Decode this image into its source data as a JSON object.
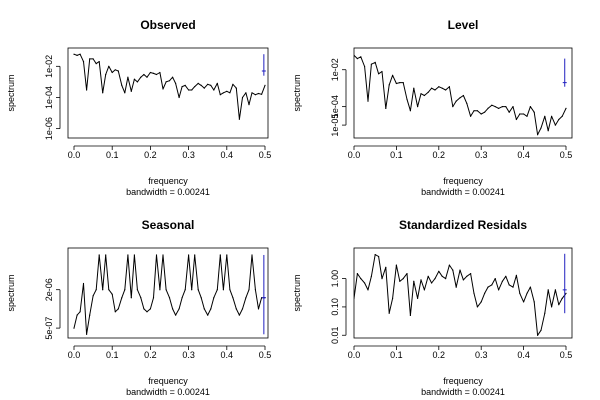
{
  "chart_data": [
    {
      "type": "line",
      "title": "Observed",
      "xlabel": "frequency",
      "sublabel": "bandwidth = 0.00241",
      "ylabel": "spectrum",
      "xlim": [
        0,
        0.5
      ],
      "xticks": [
        "0.0",
        "0.1",
        "0.2",
        "0.3",
        "0.4",
        "0.5"
      ],
      "ylog": true,
      "ylim": [
        2.5e-07,
        0.15
      ],
      "yticks": [
        {
          "v": 0.01,
          "label": "1e-02"
        },
        {
          "v": 0.0001,
          "label": "1e-04"
        },
        {
          "v": 1e-06,
          "label": "1e-06"
        }
      ],
      "ci_bar": {
        "x": 0.497,
        "lo": 0.0025,
        "hi": 0.06,
        "mid": 0.005
      },
      "series": [
        {
          "x": [
            0.0,
            0.008,
            0.016,
            0.025,
            0.033,
            0.041,
            0.05,
            0.058,
            0.066,
            0.075,
            0.083,
            0.091,
            0.1,
            0.108,
            0.116,
            0.125,
            0.133,
            0.141,
            0.15,
            0.158,
            0.166,
            0.175,
            0.183,
            0.191,
            0.2,
            0.208,
            0.216,
            0.225,
            0.233,
            0.241,
            0.25,
            0.258,
            0.266,
            0.275,
            0.283,
            0.291,
            0.3,
            0.308,
            0.316,
            0.325,
            0.333,
            0.341,
            0.35,
            0.358,
            0.366,
            0.375,
            0.383,
            0.391,
            0.4,
            0.408,
            0.416,
            0.425,
            0.433,
            0.441,
            0.45,
            0.458,
            0.466,
            0.475,
            0.483,
            0.491,
            0.5
          ],
          "y": [
            0.06,
            0.05,
            0.06,
            0.02,
            0.0003,
            0.03,
            0.03,
            0.015,
            0.02,
            0.0002,
            0.003,
            0.01,
            0.004,
            0.006,
            0.005,
            0.0006,
            0.0002,
            0.002,
            0.00025,
            0.0015,
            0.001,
            0.002,
            0.003,
            0.002,
            0.004,
            0.0035,
            0.003,
            0.004,
            0.00035,
            0.001,
            0.0012,
            0.002,
            0.0008,
            0.0001,
            0.0005,
            0.0006,
            0.0003,
            0.0003,
            0.0005,
            0.0008,
            0.0006,
            0.0004,
            0.0007,
            0.0006,
            0.0003,
            0.0008,
            0.00015,
            0.0002,
            0.00025,
            0.0002,
            0.0007,
            0.0004,
            4e-06,
            0.0001,
            0.0002,
            3.5e-05,
            0.0002,
            0.00015,
            0.00018,
            0.00016,
            0.0006
          ]
        }
      ]
    },
    {
      "type": "line",
      "title": "Level",
      "xlabel": "frequency",
      "sublabel": "bandwidth = 0.00241",
      "ylabel": "spectrum",
      "xlim": [
        0,
        0.5
      ],
      "xticks": [
        "0.0",
        "0.1",
        "0.2",
        "0.3",
        "0.4",
        "0.5"
      ],
      "ylog": true,
      "ylim": [
        2e-06,
        0.15
      ],
      "yticks": [
        {
          "v": 0.01,
          "label": "1e-02"
        },
        {
          "v": 0.0001,
          "label": "1e-04"
        },
        {
          "v": 1e-05,
          "label": "1e-05"
        }
      ],
      "ci_bar": {
        "x": 0.497,
        "lo": 0.0012,
        "hi": 0.04,
        "mid": 0.002
      },
      "series": [
        {
          "x": [
            0.0,
            0.008,
            0.016,
            0.025,
            0.033,
            0.041,
            0.05,
            0.058,
            0.066,
            0.075,
            0.083,
            0.091,
            0.1,
            0.108,
            0.116,
            0.125,
            0.133,
            0.141,
            0.15,
            0.158,
            0.166,
            0.175,
            0.183,
            0.191,
            0.2,
            0.208,
            0.216,
            0.225,
            0.233,
            0.241,
            0.25,
            0.258,
            0.266,
            0.275,
            0.283,
            0.291,
            0.3,
            0.308,
            0.316,
            0.325,
            0.333,
            0.341,
            0.35,
            0.358,
            0.366,
            0.375,
            0.383,
            0.391,
            0.4,
            0.408,
            0.416,
            0.425,
            0.433,
            0.441,
            0.45,
            0.458,
            0.466,
            0.475,
            0.483,
            0.491,
            0.5
          ],
          "y": [
            0.06,
            0.04,
            0.05,
            0.015,
            0.0002,
            0.02,
            0.025,
            0.006,
            0.008,
            8e-05,
            0.0015,
            0.005,
            0.0018,
            0.002,
            0.002,
            0.00025,
            6e-05,
            0.001,
            0.0001,
            0.0005,
            0.0004,
            0.0006,
            0.001,
            0.0008,
            0.0012,
            0.001,
            0.0008,
            0.0012,
            0.0001,
            0.0002,
            0.0003,
            0.0004,
            0.00015,
            3e-05,
            6e-05,
            6e-05,
            4e-05,
            5e-05,
            8e-05,
            0.00012,
            0.0001,
            8e-05,
            0.0001,
            0.0001,
            5e-05,
            0.0001,
            2e-05,
            4e-05,
            4e-05,
            3e-05,
            0.0001,
            5e-05,
            3e-06,
            7e-06,
            3e-05,
            5e-06,
            3e-05,
            1e-05,
            2e-05,
            3e-05,
            8e-05
          ]
        }
      ]
    },
    {
      "type": "line",
      "title": "Seasonal",
      "xlabel": "frequency",
      "sublabel": "bandwidth = 0.00241",
      "ylabel": "spectrum",
      "xlim": [
        0,
        0.5
      ],
      "xticks": [
        "0.0",
        "0.1",
        "0.2",
        "0.3",
        "0.4",
        "0.5"
      ],
      "ylog": true,
      "ylim": [
        3.5e-07,
        9e-06
      ],
      "yticks": [
        {
          "v": 2e-06,
          "label": "2e-06"
        },
        {
          "v": 5e-07,
          "label": "5e-07"
        }
      ],
      "ci_bar": {
        "x": 0.497,
        "lo": 4e-07,
        "hi": 7e-06,
        "mid": 1.5e-06
      },
      "series": [
        {
          "x": [
            0.0,
            0.008,
            0.016,
            0.025,
            0.033,
            0.041,
            0.05,
            0.058,
            0.066,
            0.075,
            0.083,
            0.091,
            0.1,
            0.108,
            0.116,
            0.125,
            0.133,
            0.141,
            0.15,
            0.158,
            0.166,
            0.175,
            0.183,
            0.191,
            0.2,
            0.208,
            0.216,
            0.225,
            0.233,
            0.241,
            0.25,
            0.258,
            0.266,
            0.275,
            0.283,
            0.291,
            0.3,
            0.308,
            0.316,
            0.325,
            0.333,
            0.341,
            0.35,
            0.358,
            0.366,
            0.375,
            0.383,
            0.391,
            0.4,
            0.408,
            0.416,
            0.425,
            0.433,
            0.441,
            0.45,
            0.458,
            0.466,
            0.475,
            0.483,
            0.491,
            0.5
          ],
          "y": [
            5e-07,
            8e-07,
            9e-07,
            2.5e-06,
            4e-07,
            8e-07,
            1.6e-06,
            2e-06,
            7e-06,
            2e-06,
            7e-06,
            2e-06,
            1.7e-06,
            9e-07,
            1e-06,
            1.5e-06,
            2e-06,
            7e-06,
            1.5e-06,
            7e-06,
            2e-06,
            1.5e-06,
            1e-06,
            9e-07,
            1e-06,
            1.5e-06,
            7e-06,
            2e-06,
            7e-06,
            2e-06,
            1.5e-06,
            1e-06,
            8e-07,
            1e-06,
            1.5e-06,
            2e-06,
            7e-06,
            2e-06,
            7e-06,
            2e-06,
            1.5e-06,
            1e-06,
            8e-07,
            1e-06,
            1.5e-06,
            2e-06,
            7e-06,
            2e-06,
            7e-06,
            2e-06,
            1.5e-06,
            1e-06,
            8e-07,
            1e-06,
            1.5e-06,
            2e-06,
            7e-06,
            2e-06,
            1e-06,
            1.5e-06,
            1.5e-06
          ]
        }
      ]
    },
    {
      "type": "line",
      "title": "Standardized Residals",
      "xlabel": "frequency",
      "sublabel": "bandwidth = 0.00241",
      "ylabel": "spectrum",
      "xlim": [
        0,
        0.5
      ],
      "xticks": [
        "0.0",
        "0.1",
        "0.2",
        "0.3",
        "0.4",
        "0.5"
      ],
      "ylog": true,
      "ylim": [
        0.008,
        12
      ],
      "yticks": [
        {
          "v": 1,
          "label": "1.00"
        },
        {
          "v": 0.1,
          "label": "0.10"
        },
        {
          "v": 0.01,
          "label": "0.01"
        }
      ],
      "ci_bar": {
        "x": 0.497,
        "lo": 0.06,
        "hi": 7.5,
        "mid": 0.4
      },
      "series": [
        {
          "x": [
            0.0,
            0.008,
            0.016,
            0.025,
            0.033,
            0.041,
            0.05,
            0.058,
            0.066,
            0.075,
            0.083,
            0.091,
            0.1,
            0.108,
            0.116,
            0.125,
            0.133,
            0.141,
            0.15,
            0.158,
            0.166,
            0.175,
            0.183,
            0.191,
            0.2,
            0.208,
            0.216,
            0.225,
            0.233,
            0.241,
            0.25,
            0.258,
            0.266,
            0.275,
            0.283,
            0.291,
            0.3,
            0.308,
            0.316,
            0.325,
            0.333,
            0.341,
            0.35,
            0.358,
            0.366,
            0.375,
            0.383,
            0.391,
            0.4,
            0.408,
            0.416,
            0.425,
            0.433,
            0.441,
            0.45,
            0.458,
            0.466,
            0.475,
            0.483,
            0.491,
            0.5
          ],
          "y": [
            0.2,
            1.5,
            1.0,
            0.7,
            0.4,
            1.2,
            7.0,
            6.0,
            1.0,
            2.5,
            0.06,
            0.2,
            3.0,
            0.8,
            1.0,
            1.5,
            0.05,
            0.8,
            0.2,
            0.9,
            0.4,
            1.2,
            0.7,
            1.0,
            1.8,
            1.2,
            1.0,
            3.0,
            2.0,
            0.5,
            2.0,
            0.9,
            1.2,
            1.5,
            0.3,
            0.1,
            0.15,
            0.3,
            0.5,
            0.6,
            1.0,
            0.4,
            0.8,
            1.2,
            0.6,
            0.5,
            1.3,
            0.3,
            0.15,
            0.3,
            0.5,
            0.15,
            0.01,
            0.015,
            0.06,
            0.4,
            0.1,
            0.4,
            0.12,
            0.2,
            0.3
          ]
        }
      ]
    }
  ]
}
